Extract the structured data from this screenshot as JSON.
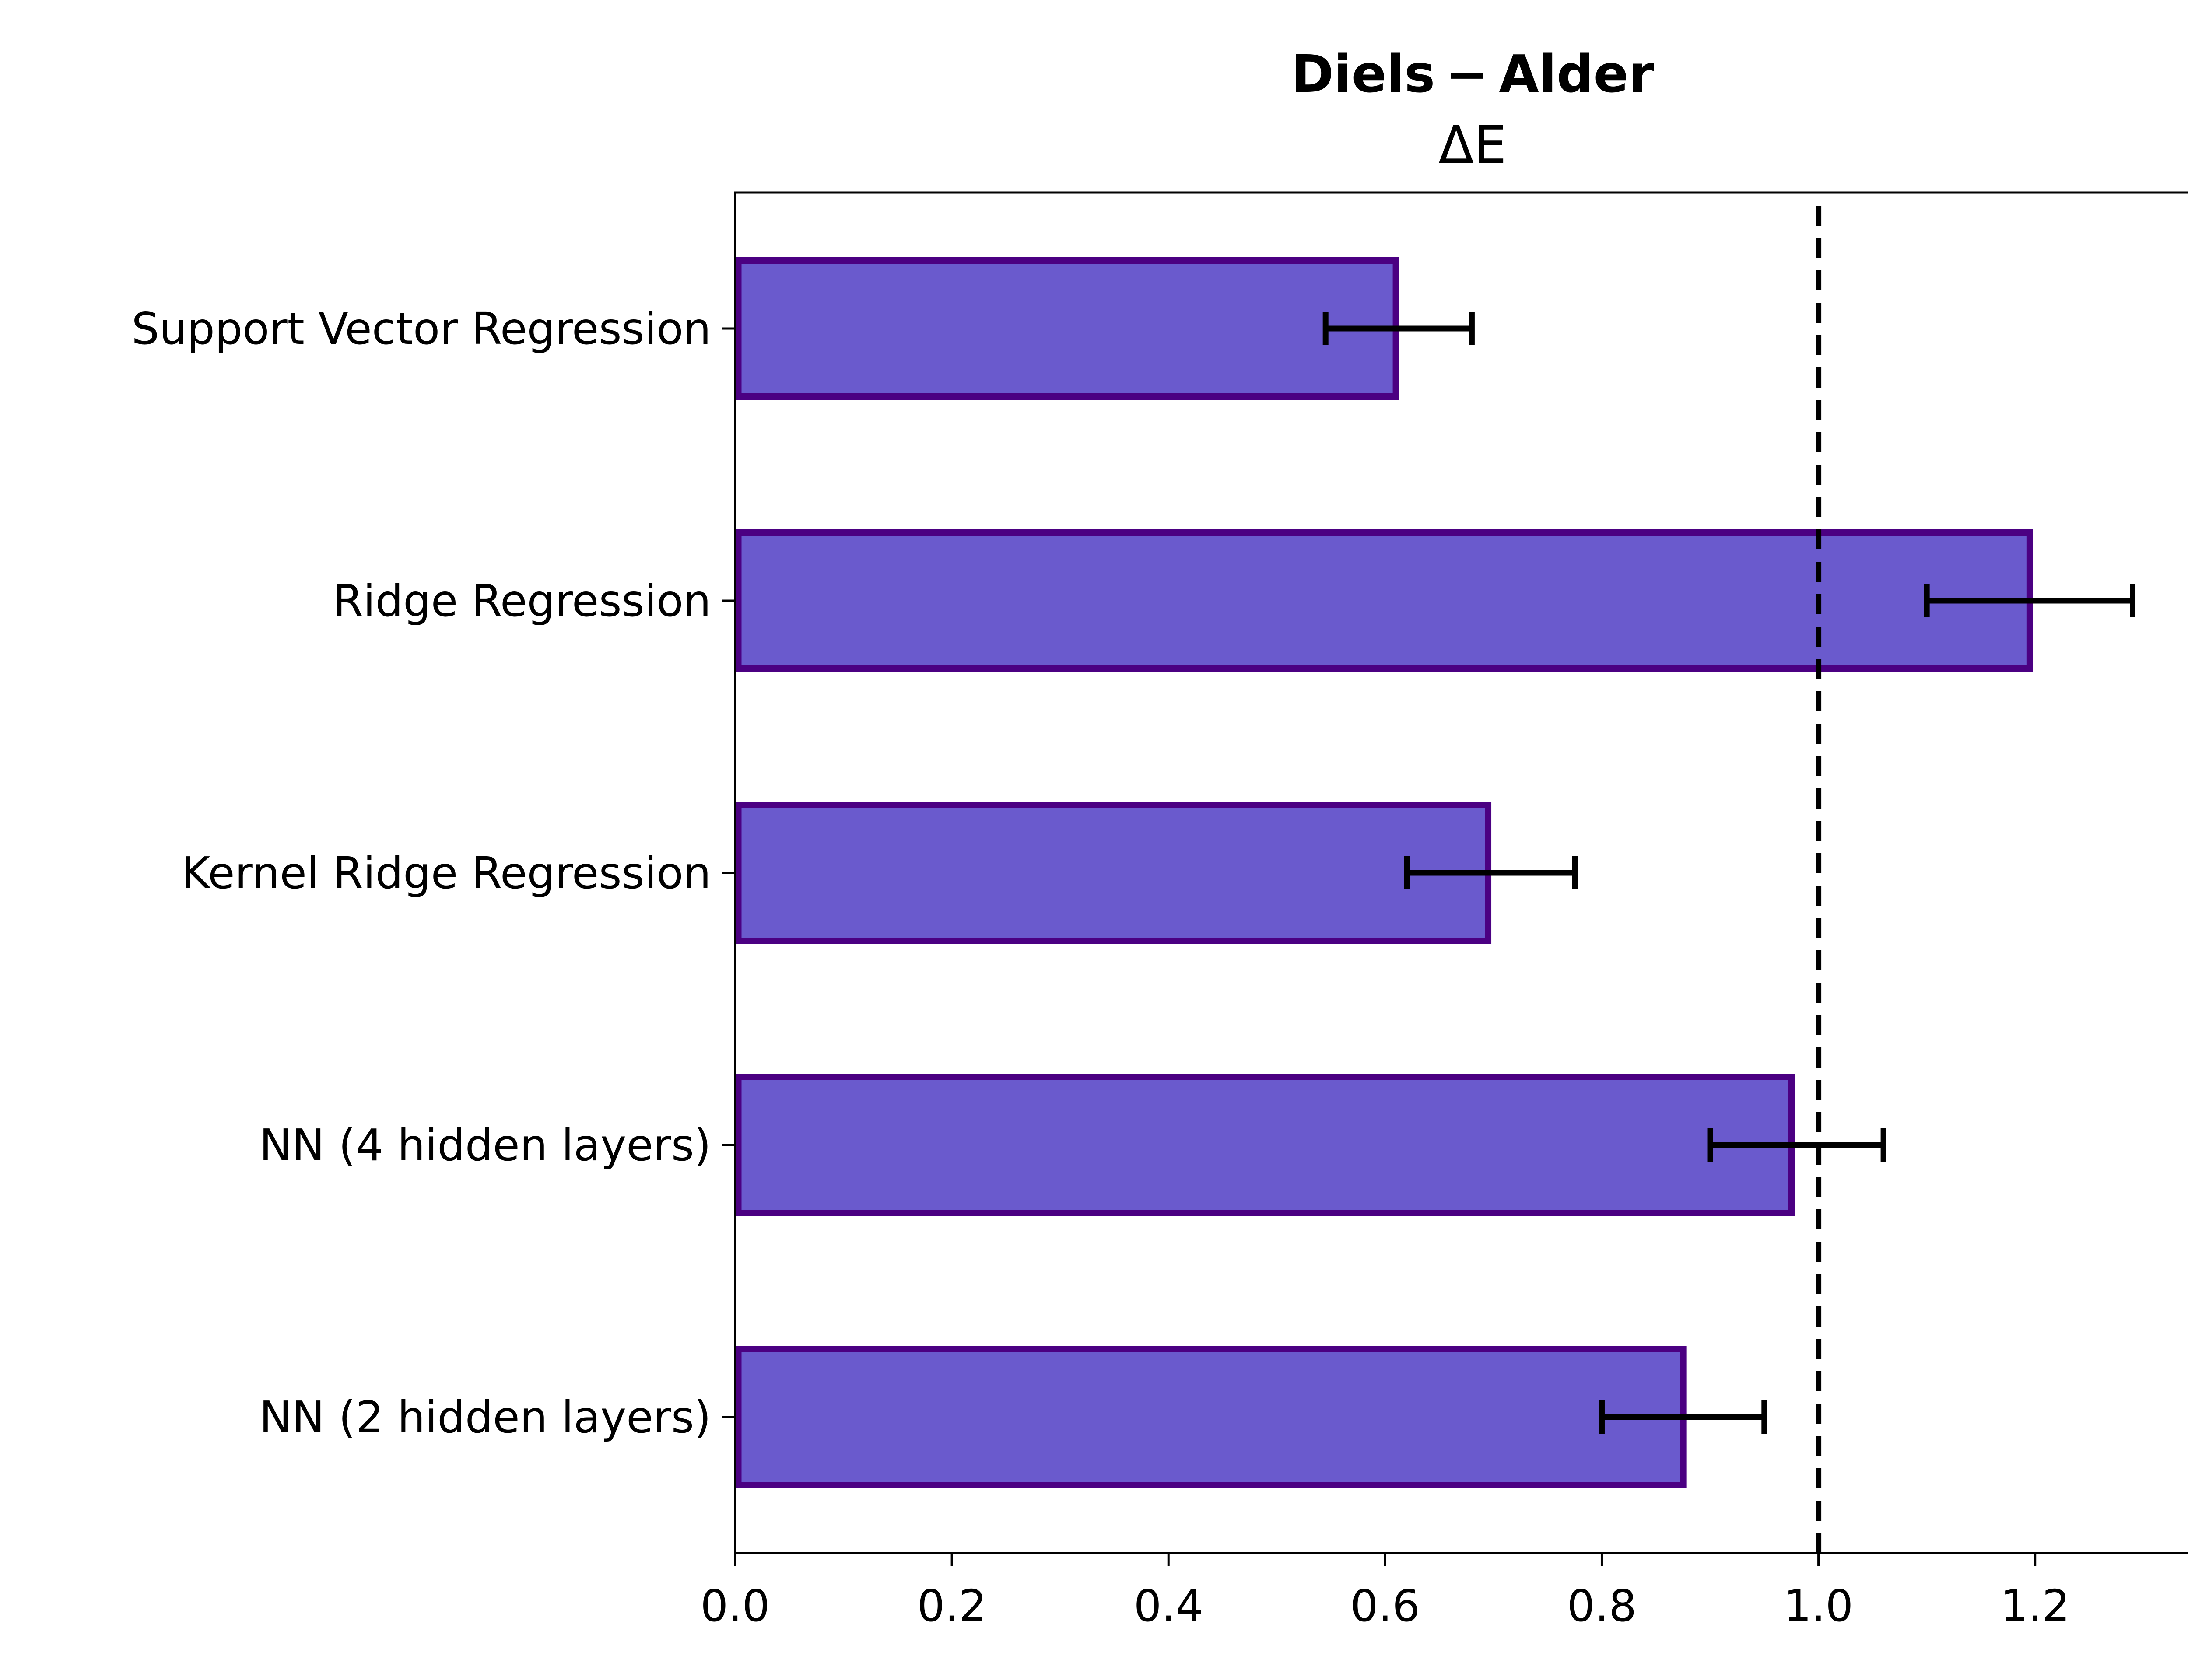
{
  "chart_data": {
    "type": "bar",
    "orientation": "horizontal",
    "title": "Diels − Alder",
    "subtitle": "ΔE",
    "xlabel": "",
    "ylabel": "",
    "categories": [
      "Support Vector Regression",
      "Ridge Regression",
      "Kernel Ridge Regression",
      "NN (4 hidden layers)",
      "NN (2 hidden layers)"
    ],
    "values": [
      0.61,
      1.195,
      0.695,
      0.975,
      0.875
    ],
    "error_low": [
      0.545,
      1.1,
      0.62,
      0.9,
      0.8
    ],
    "error_high": [
      0.68,
      1.29,
      0.775,
      1.06,
      0.95
    ],
    "xlim": [
      0,
      1.352
    ],
    "xticks": [
      0.0,
      0.2,
      0.4,
      0.6,
      0.8,
      1.0,
      1.2
    ],
    "xtick_labels": [
      "0.0",
      "0.2",
      "0.4",
      "0.6",
      "0.8",
      "1.0",
      "1.2"
    ],
    "reference_line": 1.0,
    "grid": false,
    "colors": {
      "bar_fill": "#6a5acd",
      "bar_edge": "#4b0082",
      "errorbar": "#000000",
      "reference_line": "#000000",
      "axes": "#000000"
    }
  }
}
